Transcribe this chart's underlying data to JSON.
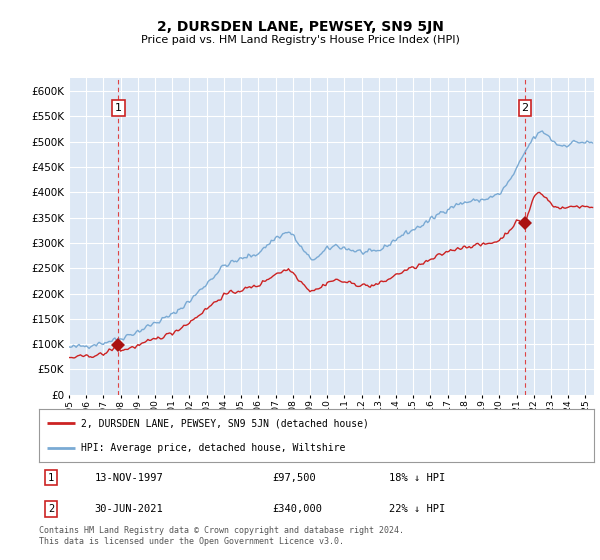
{
  "title": "2, DURSDEN LANE, PEWSEY, SN9 5JN",
  "subtitle": "Price paid vs. HM Land Registry's House Price Index (HPI)",
  "ylabel_values": [
    0,
    50000,
    100000,
    150000,
    200000,
    250000,
    300000,
    350000,
    400000,
    450000,
    500000,
    550000,
    600000
  ],
  "ylim": [
    0,
    625000
  ],
  "plot_bg": "#dde8f5",
  "grid_color": "#ffffff",
  "sale1_date_x": 1997.87,
  "sale1_price": 97500,
  "sale2_date_x": 2021.5,
  "sale2_price": 340000,
  "sale1_label": "1",
  "sale2_label": "2",
  "legend_line1": "2, DURSDEN LANE, PEWSEY, SN9 5JN (detached house)",
  "legend_line2": "HPI: Average price, detached house, Wiltshire",
  "table_row1": [
    "1",
    "13-NOV-1997",
    "£97,500",
    "18% ↓ HPI"
  ],
  "table_row2": [
    "2",
    "30-JUN-2021",
    "£340,000",
    "22% ↓ HPI"
  ],
  "footer": "Contains HM Land Registry data © Crown copyright and database right 2024.\nThis data is licensed under the Open Government Licence v3.0.",
  "hpi_color": "#7aaad4",
  "price_color": "#cc2222",
  "sale_dot_color": "#aa1111",
  "dashed_line_color": "#dd4444",
  "x_start": 1995.0,
  "x_end": 2025.5,
  "x_ticks": [
    1995,
    1996,
    1997,
    1998,
    1999,
    2000,
    2001,
    2002,
    2003,
    2004,
    2005,
    2006,
    2007,
    2008,
    2009,
    2010,
    2011,
    2012,
    2013,
    2014,
    2015,
    2016,
    2017,
    2018,
    2019,
    2020,
    2021,
    2022,
    2023,
    2024,
    2025
  ]
}
